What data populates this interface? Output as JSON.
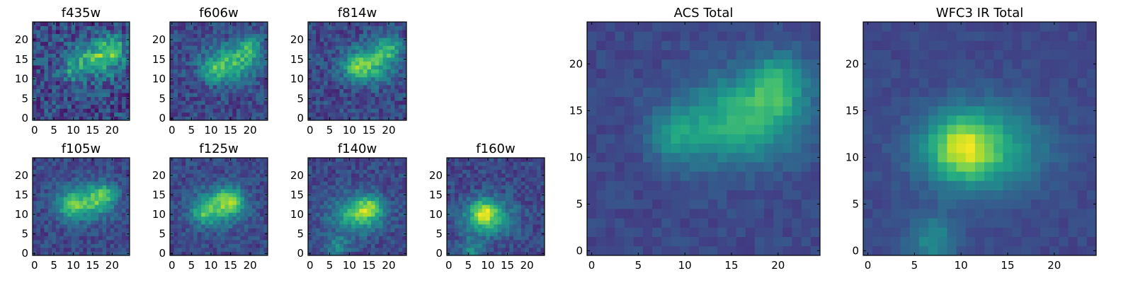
{
  "colormap": "viridis",
  "chart_data": [
    {
      "type": "heatmap",
      "title": "f435w",
      "xticks": [
        0,
        5,
        10,
        15,
        20
      ],
      "yticks": [
        0,
        5,
        10,
        15,
        20
      ],
      "xlim": [
        0,
        24
      ],
      "ylim": [
        0,
        24
      ],
      "blob": {
        "center": [
          16,
          15
        ],
        "peak": [
          20,
          18
        ],
        "peak2": [
          10,
          12
        ],
        "noise": 0.35
      }
    },
    {
      "type": "heatmap",
      "title": "f606w",
      "xticks": [
        0,
        5,
        10,
        15,
        20
      ],
      "yticks": [
        0,
        5,
        10,
        15,
        20
      ],
      "xlim": [
        0,
        24
      ],
      "ylim": [
        0,
        24
      ],
      "blob": {
        "center": [
          15,
          14
        ],
        "peak": [
          20,
          18
        ],
        "peak2": [
          10,
          12
        ],
        "noise": 0.25
      }
    },
    {
      "type": "heatmap",
      "title": "f814w",
      "xticks": [
        0,
        5,
        10,
        15,
        20
      ],
      "yticks": [
        0,
        5,
        10,
        15,
        20
      ],
      "xlim": [
        0,
        24
      ],
      "ylim": [
        0,
        24
      ],
      "blob": {
        "center": [
          15,
          14
        ],
        "peak": [
          20,
          18
        ],
        "peak2": [
          12,
          12
        ],
        "noise": 0.25
      }
    },
    {
      "type": "heatmap",
      "title": "f105w",
      "xticks": [
        0,
        5,
        10,
        15,
        20
      ],
      "yticks": [
        0,
        5,
        10,
        15,
        20
      ],
      "xlim": [
        0,
        24
      ],
      "ylim": [
        0,
        24
      ],
      "blob": {
        "center": [
          13,
          13
        ],
        "peak": [
          18,
          15
        ],
        "peak2": [
          9,
          12
        ],
        "noise": 0.2
      }
    },
    {
      "type": "heatmap",
      "title": "f125w",
      "xticks": [
        0,
        5,
        10,
        15,
        20
      ],
      "yticks": [
        0,
        5,
        10,
        15,
        20
      ],
      "xlim": [
        0,
        24
      ],
      "ylim": [
        0,
        24
      ],
      "blob": {
        "center": [
          12,
          12
        ],
        "peak": [
          15,
          14
        ],
        "peak2": [
          8,
          10
        ],
        "noise": 0.2
      }
    },
    {
      "type": "heatmap",
      "title": "f140w",
      "xticks": [
        0,
        5,
        10,
        15,
        20
      ],
      "yticks": [
        0,
        5,
        10,
        15,
        20
      ],
      "xlim": [
        0,
        24
      ],
      "ylim": [
        0,
        24
      ],
      "blob": {
        "center": [
          12,
          10
        ],
        "peak": [
          15,
          12
        ],
        "peak2": [
          7,
          2
        ],
        "noise": 0.2
      }
    },
    {
      "type": "heatmap",
      "title": "f160w",
      "xticks": [
        0,
        5,
        10,
        15,
        20
      ],
      "yticks": [
        0,
        5,
        10,
        15,
        20
      ],
      "xlim": [
        0,
        24
      ],
      "ylim": [
        0,
        24
      ],
      "blob": {
        "center": [
          10,
          9
        ],
        "peak": [
          9,
          11
        ],
        "peak2": [
          6,
          1
        ],
        "noise": 0.2
      }
    },
    {
      "type": "heatmap",
      "title": "ACS Total",
      "xticks": [
        0,
        5,
        10,
        15,
        20
      ],
      "yticks": [
        0,
        5,
        10,
        15,
        20
      ],
      "xlim": [
        0,
        24
      ],
      "ylim": [
        0,
        24
      ],
      "blob": {
        "center": [
          16,
          14
        ],
        "peak": [
          20,
          18
        ],
        "peak2": [
          9,
          12
        ],
        "noise": 0.1
      }
    },
    {
      "type": "heatmap",
      "title": "WFC3 IR Total",
      "xticks": [
        0,
        5,
        10,
        15,
        20
      ],
      "yticks": [
        0,
        5,
        10,
        15,
        20
      ],
      "xlim": [
        0,
        24
      ],
      "ylim": [
        0,
        24
      ],
      "blob": {
        "center": [
          12,
          11
        ],
        "peak": [
          10,
          11
        ],
        "peak2": [
          7,
          1
        ],
        "noise": 0.08
      }
    }
  ]
}
